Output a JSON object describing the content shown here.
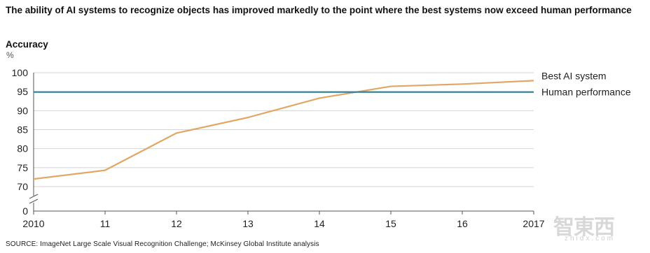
{
  "chart_data": {
    "type": "line",
    "title": "The ability of AI systems to recognize objects has improved markedly to the point where the best systems now exceed human performance",
    "ylabel": "Accuracy",
    "yunit": "%",
    "x": [
      "2010",
      "11",
      "12",
      "13",
      "14",
      "15",
      "16",
      "2017"
    ],
    "ylim": [
      0,
      100
    ],
    "yticks": [
      0,
      70,
      75,
      80,
      85,
      90,
      95,
      100
    ],
    "axis_break": true,
    "grid": true,
    "legend": "right",
    "series": [
      {
        "name": "Best AI system",
        "color": "#e0a766",
        "values": [
          72.0,
          74.3,
          84.1,
          88.2,
          93.3,
          96.4,
          97.0,
          97.9
        ]
      },
      {
        "name": "Human performance",
        "color": "#2a7f9a",
        "values": [
          94.9,
          94.9,
          94.9,
          94.9,
          94.9,
          94.9,
          94.9,
          94.9
        ]
      }
    ]
  },
  "source": "SOURCE:  ImageNet Large Scale Visual Recognition Challenge; McKinsey Global Institute analysis",
  "watermark": {
    "main": "智東西",
    "sub": "zhidx.com"
  }
}
